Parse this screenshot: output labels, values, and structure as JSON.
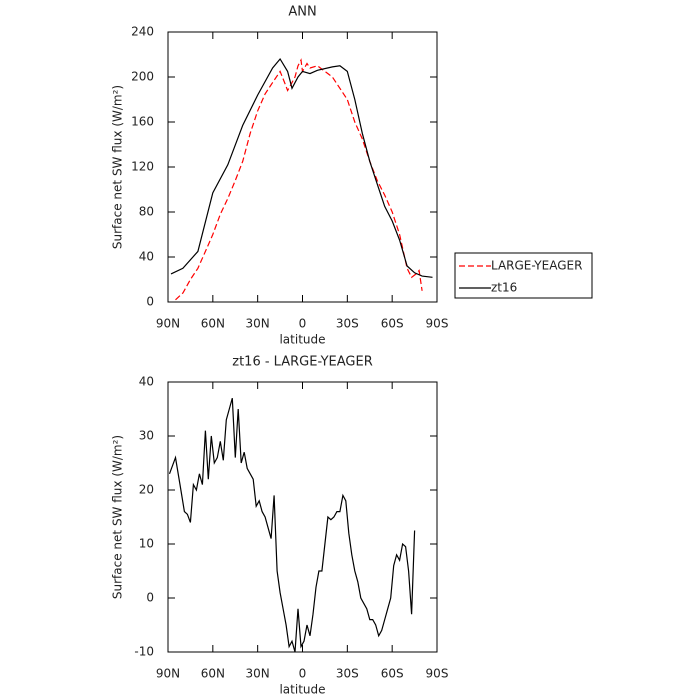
{
  "chart_data": [
    {
      "type": "line",
      "title": "ANN",
      "xlabel": "latitude",
      "ylabel": "Surface net SW flux (W/m²)",
      "xlim": [
        90,
        -90
      ],
      "xticks": [
        {
          "value": 90,
          "label": "90N"
        },
        {
          "value": 60,
          "label": "60N"
        },
        {
          "value": 30,
          "label": "30N"
        },
        0,
        {
          "value": -30,
          "label": "30S"
        },
        {
          "value": -60,
          "label": "60S"
        },
        {
          "value": -90,
          "label": "90S"
        }
      ],
      "ylim": [
        0,
        240
      ],
      "yticks": [
        0,
        40,
        80,
        120,
        160,
        200,
        240
      ],
      "legend": "right",
      "series": [
        {
          "name": "LARGE-YEAGER",
          "color": "#ff0000",
          "linestyle": "dashed",
          "x": [
            85,
            80,
            75,
            70,
            65,
            60,
            55,
            50,
            45,
            40,
            35,
            30,
            25,
            20,
            15,
            12,
            10,
            7,
            5,
            3,
            1,
            0,
            -3,
            -5,
            -10,
            -15,
            -20,
            -25,
            -30,
            -35,
            -40,
            -45,
            -50,
            -55,
            -60,
            -65,
            -70,
            -73,
            -76,
            -78,
            -80
          ],
          "values": [
            2,
            8,
            20,
            30,
            45,
            60,
            78,
            92,
            108,
            125,
            150,
            170,
            185,
            195,
            205,
            195,
            188,
            195,
            200,
            210,
            215,
            205,
            212,
            208,
            210,
            205,
            200,
            190,
            180,
            160,
            145,
            125,
            108,
            95,
            80,
            60,
            30,
            22,
            25,
            28,
            10
          ]
        },
        {
          "name": "zt16",
          "color": "#000000",
          "linestyle": "solid",
          "x": [
            88,
            80,
            70,
            60,
            50,
            40,
            30,
            20,
            15,
            10,
            7,
            3,
            0,
            -5,
            -10,
            -20,
            -25,
            -30,
            -35,
            -40,
            -45,
            -50,
            -55,
            -60,
            -65,
            -70,
            -75,
            -80,
            -87
          ],
          "values": [
            25,
            30,
            45,
            97,
            122,
            157,
            184,
            208,
            216,
            205,
            190,
            200,
            205,
            203,
            206,
            209,
            210,
            205,
            180,
            150,
            125,
            105,
            85,
            72,
            55,
            32,
            26,
            23,
            22
          ]
        }
      ]
    },
    {
      "type": "line",
      "title": "zt16 - LARGE-YEAGER",
      "xlabel": "latitude",
      "ylabel": "Surface net SW flux (W/m²)",
      "xlim": [
        90,
        -90
      ],
      "xticks": [
        {
          "value": 90,
          "label": "90N"
        },
        {
          "value": 60,
          "label": "60N"
        },
        {
          "value": 30,
          "label": "30N"
        },
        0,
        {
          "value": -30,
          "label": "30S"
        },
        {
          "value": -60,
          "label": "60S"
        },
        {
          "value": -90,
          "label": "90S"
        }
      ],
      "ylim": [
        -10,
        40
      ],
      "yticks": [
        -10,
        0,
        10,
        20,
        30,
        40
      ],
      "series": [
        {
          "color": "#000000",
          "linestyle": "solid",
          "x": [
            89,
            85,
            82,
            79,
            77,
            75,
            73,
            71,
            69,
            67,
            65,
            63,
            61,
            59,
            57,
            55,
            53,
            51,
            49,
            47,
            45,
            43,
            41,
            39,
            37,
            35,
            33,
            31,
            29,
            27,
            25,
            23,
            21,
            19,
            17,
            15,
            13,
            11,
            9,
            7,
            5,
            3,
            1,
            -1,
            -3,
            -5,
            -7,
            -9,
            -11,
            -13,
            -15,
            -17,
            -19,
            -21,
            -23,
            -25,
            -27,
            -29,
            -31,
            -33,
            -35,
            -37,
            -39,
            -41,
            -43,
            -45,
            -47,
            -49,
            -51,
            -53,
            -55,
            -57,
            -59,
            -61,
            -63,
            -65,
            -67,
            -69,
            -71,
            -73,
            -75
          ],
          "values": [
            23,
            26,
            21,
            16,
            15.5,
            14,
            21,
            20,
            23,
            21,
            31,
            22,
            30,
            25,
            26,
            29,
            25.5,
            33,
            35,
            37,
            26,
            35,
            25,
            27,
            24,
            23,
            22,
            17,
            18,
            16,
            15,
            13,
            11,
            19,
            5,
            1,
            -2,
            -5,
            -9,
            -8,
            -10,
            -2,
            -9,
            -8,
            -5,
            -7,
            -3,
            2,
            5,
            5,
            10,
            15,
            14.5,
            15,
            16,
            16,
            19,
            18,
            12,
            8,
            5,
            3,
            0,
            -1,
            -2,
            -4,
            -4,
            -5,
            -7,
            -6,
            -4,
            -2,
            0,
            6,
            8,
            7,
            10,
            9.5,
            5,
            -3,
            12.5
          ]
        }
      ]
    }
  ]
}
